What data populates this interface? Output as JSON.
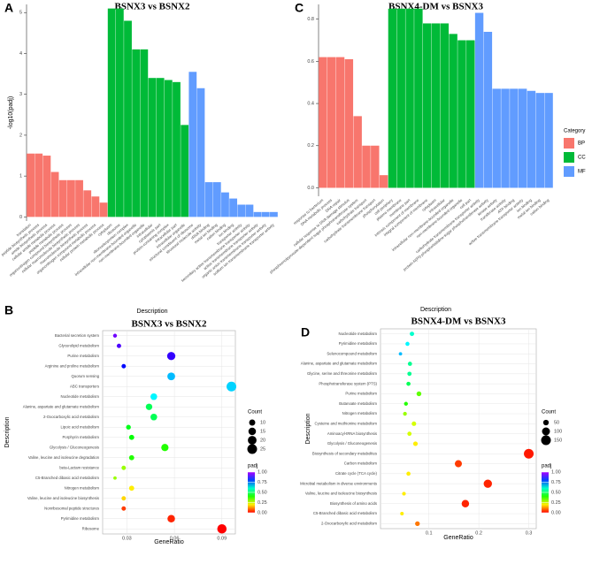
{
  "chart_data": [
    {
      "type": "bar",
      "panel_label": "A",
      "title": "BSNX3 vs BSNX2",
      "ylabel": "-log10(padj)",
      "xlabel": "Description",
      "ylim": [
        -0.1,
        5.2
      ],
      "yticks": [
        0,
        1,
        2,
        3,
        4,
        5
      ],
      "grid": false,
      "series": [
        {
          "color": "#f8766d",
          "categories": [
            "translation",
            "peptide biosynthetic process",
            "amide biosynthetic process",
            "cellular amide metabolic process",
            "peptide metabolic process",
            "organonitrogen compound biosynthetic process",
            "cellular macromolecule biosynthetic process",
            "macromolecule biosynthetic process",
            "organonitrogen compound metabolic process",
            "cellular protein metabolic process"
          ],
          "values": [
            1.55,
            1.55,
            1.5,
            1.1,
            0.9,
            0.9,
            0.9,
            0.65,
            0.5,
            0.35
          ]
        },
        {
          "color": "#00ba38",
          "categories": [
            "cytoplasm",
            "ribosome",
            "ribonucleoprotein complex",
            "intracellular non-membrane-bounded organelle",
            "non-membrane-bounded organelle",
            "intracellular",
            "cytoplasmic part",
            "protein-containing complex",
            "intracellular part",
            "intracellular organelle"
          ],
          "values": [
            5.1,
            5.1,
            4.8,
            4.1,
            4.1,
            3.4,
            3.4,
            3.35,
            3.3,
            2.25
          ]
        },
        {
          "color": "#619cff",
          "categories": [
            "structural constituent of ribosome",
            "structural molecule activity",
            "rRNA binding",
            "metal ion binding",
            "cation binding",
            "ion binding",
            "transporter activity",
            "secondary active transmembrane transporter activity",
            "active transmembrane transporter activity",
            "organic anion transmembrane transporter activity",
            "sodium ion transmembrane transporter activity"
          ],
          "values": [
            3.55,
            3.15,
            0.85,
            0.85,
            0.6,
            0.45,
            0.3,
            0.3,
            0.12,
            0.12,
            0.12
          ]
        }
      ]
    },
    {
      "type": "bar",
      "panel_label": "C",
      "title": "BSNX4-DM vs BSNX3",
      "xlabel": "Description",
      "legend_title": "Category",
      "legend": "right",
      "ylim": [
        -0.04,
        0.87
      ],
      "yticks": [
        {
          "value": 0,
          "label": "0.0"
        },
        0.2,
        0.4,
        0.6,
        0.8
      ],
      "grid": false,
      "series": [
        {
          "name": "BP",
          "color": "#f8766d",
          "categories": [
            "response to bacterium",
            "DNA metabolic process",
            "DNA repair",
            "cellular response to DNA damage stimulus",
            "phosphoenolpyruvate-dependent sugar phosphotransferase system",
            "carbohydrate transport",
            "carbohydrate transmembrane transport",
            "phosphorylation"
          ],
          "values": [
            0.62,
            0.62,
            0.62,
            0.61,
            0.34,
            0.2,
            0.2,
            0.06
          ]
        },
        {
          "name": "CC",
          "color": "#00ba38",
          "categories": [
            "cell periphery",
            "plasma membrane",
            "membrane part",
            "intrinsic component of membrane",
            "integral component of membrane",
            "cytoplasm",
            "intracellular",
            "intracellular non-membrane-bounded organelle",
            "non-membrane-bounded organelle",
            "cell part"
          ],
          "values": [
            0.85,
            0.85,
            0.85,
            0.85,
            0.78,
            0.78,
            0.78,
            0.73,
            0.7,
            0.7
          ]
        },
        {
          "name": "MF",
          "color": "#619cff",
          "categories": [
            "carbohydrate transmembrane transporter activity",
            "protein-N(PI)-phosphohistidine-sugar phosphotransferase activity",
            "kinase activity",
            "transferase activity",
            "ATP binding",
            "active transmembrane transporter activity",
            "ion binding",
            "metal ion binding",
            "cation binding"
          ],
          "values": [
            0.83,
            0.74,
            0.47,
            0.47,
            0.47,
            0.47,
            0.46,
            0.45,
            0.45
          ]
        }
      ]
    },
    {
      "type": "scatter",
      "panel_label": "B",
      "title": "BSNX3 vs BSNX2",
      "ylabel": "Description",
      "xlabel": "GeneRatio",
      "xlim": [
        0.0147,
        0.0985
      ],
      "xticks": [
        0.03,
        0.06,
        0.09
      ],
      "grid": true,
      "categories": [
        "Bacterial secretion system",
        "Glycerolipid metabolism",
        "Purine metabolism",
        "Arginine and proline metabolism",
        "Quorum sensing",
        "ABC transporters",
        "Nucleotide metabolism",
        "Alanine, aspartate and glutamate metabolism",
        "2-Oxocarboxylic acid metabolism",
        "Lipoic acid metabolism",
        "Porphyrin metabolism",
        "Glycolysis / Gluconeogenesis",
        "Valine, leucine and isoleucine degradation",
        "beta-Lactam resistance",
        "C5-Branched dibasic acid metabolism",
        "Nitrogen metabolism",
        "Valine, leucine and isoleucine biosynthesis",
        "Nonribosomal peptide structures",
        "Pyrimidine metabolism",
        "Ribosome"
      ],
      "x": [
        0.0225,
        0.025,
        0.058,
        0.028,
        0.058,
        0.096,
        0.047,
        0.044,
        0.047,
        0.031,
        0.033,
        0.054,
        0.033,
        0.028,
        0.0225,
        0.033,
        0.028,
        0.028,
        0.058,
        0.09
      ],
      "counts": [
        4,
        5,
        18,
        5,
        16,
        25,
        12,
        11,
        12,
        6,
        7,
        14,
        7,
        5,
        3,
        7,
        5,
        5,
        15,
        23
      ],
      "padj": [
        0.95,
        0.92,
        0.9,
        0.85,
        0.7,
        0.68,
        0.65,
        0.5,
        0.5,
        0.45,
        0.43,
        0.4,
        0.4,
        0.3,
        0.3,
        0.2,
        0.18,
        0.05,
        0.03,
        0.0
      ],
      "size_legend": {
        "title": "Count",
        "values": [
          10,
          15,
          20,
          25
        ]
      },
      "color_legend": {
        "title": "padj",
        "lim": [
          0,
          1
        ],
        "ticks": [
          {
            "value": 0,
            "label": "0.00"
          },
          {
            "value": 0.25,
            "label": "0.25"
          },
          {
            "value": 0.5,
            "label": "0.50"
          },
          {
            "value": 0.75,
            "label": "0.75"
          },
          {
            "value": 1,
            "label": "1.00"
          }
        ]
      }
    },
    {
      "type": "scatter",
      "panel_label": "D",
      "title": "BSNX4-DM vs BSNX3",
      "ylabel": "Description",
      "xlabel": "GeneRatio",
      "xlim": [
        0.003,
        0.315
      ],
      "xticks": [
        0.1,
        0.2,
        0.3
      ],
      "grid": true,
      "categories": [
        "Nucleotide metabolism",
        "Pyrimidine metabolism",
        "Selenocompound metabolism",
        "Alanine, aspartate and glutamate metabolism",
        "Glycine, serine and threonine metabolism",
        "Phosphotransferase system (PTS)",
        "Purine metabolism",
        "Butanoate metabolism",
        "Nitrogen metabolism",
        "Cysteine and methionine metabolism",
        "Aminoacyl-tRNA biosynthesis",
        "Glycolysis / Gluconeogenesis",
        "Biosynthesis of secondary metabolites",
        "Carbon metabolism",
        "Citrate cycle (TCA cycle)",
        "Microbial metabolism in diverse environments",
        "Valine, leucine and isoleucine biosynthesis",
        "Biosynthesis of amino acids",
        "C5-Branched dibasic acid metabolism",
        "2-Oxocarboxylic acid metabolism"
      ],
      "x": [
        0.066,
        0.057,
        0.043,
        0.062,
        0.061,
        0.059,
        0.08,
        0.054,
        0.052,
        0.07,
        0.061,
        0.073,
        0.3,
        0.159,
        0.059,
        0.218,
        0.05,
        0.173,
        0.046,
        0.077
      ],
      "counts": [
        30,
        26,
        18,
        28,
        28,
        27,
        36,
        24,
        23,
        32,
        28,
        33,
        150,
        80,
        27,
        110,
        22,
        88,
        20,
        35
      ],
      "padj": [
        0.6,
        0.65,
        0.7,
        0.55,
        0.55,
        0.5,
        0.35,
        0.4,
        0.3,
        0.25,
        0.25,
        0.2,
        0.02,
        0.05,
        0.2,
        0.03,
        0.2,
        0.03,
        0.2,
        0.1
      ],
      "size_legend": {
        "title": "Count",
        "values": [
          50,
          100,
          150
        ]
      },
      "color_legend": {
        "title": "padj",
        "lim": [
          0,
          1
        ],
        "ticks": [
          {
            "value": 0,
            "label": "0.00"
          },
          {
            "value": 0.25,
            "label": "0.25"
          },
          {
            "value": 0.5,
            "label": "0.50"
          },
          {
            "value": 0.75,
            "label": "0.75"
          },
          {
            "value": 1,
            "label": "1.00"
          }
        ]
      }
    }
  ]
}
